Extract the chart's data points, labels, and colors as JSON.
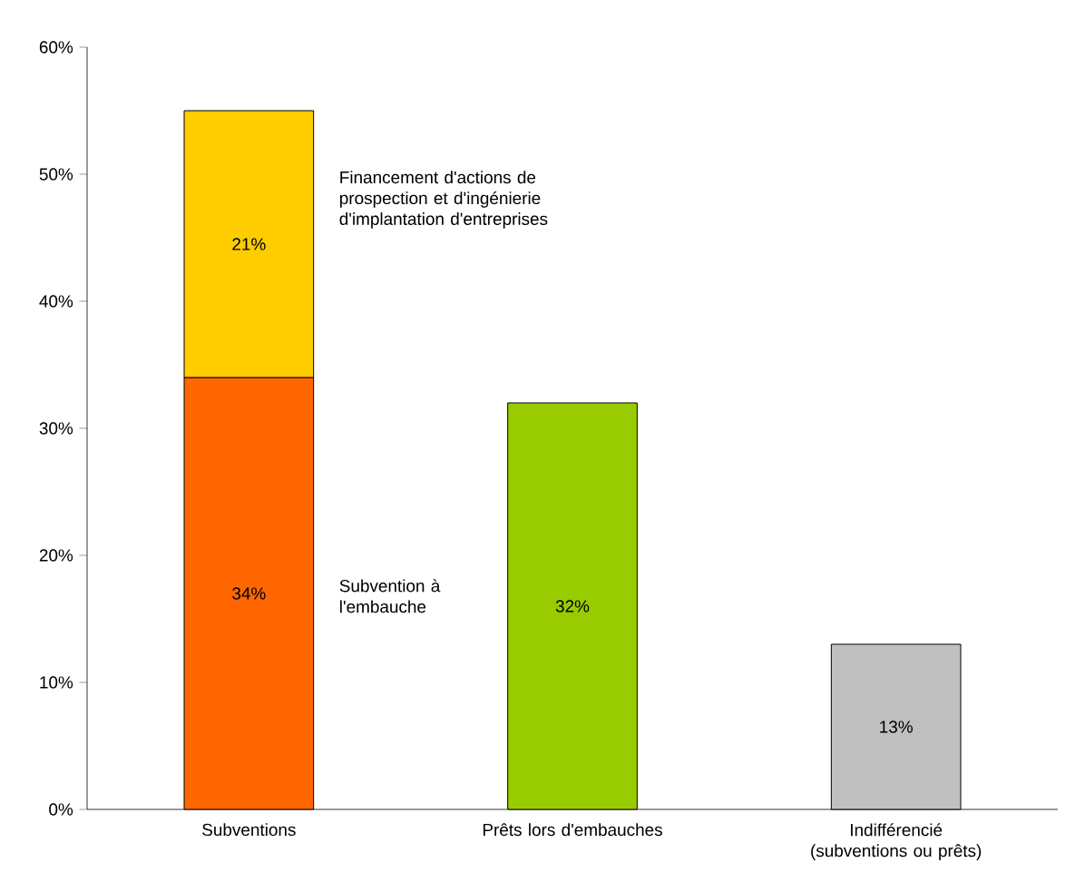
{
  "chart_data": {
    "type": "bar",
    "stacked": true,
    "categories": [
      "Subventions",
      "Prêts lors d'embauches",
      "Indifférencié (subventions ou prêts)"
    ],
    "series": [
      {
        "colors": [
          "#ff6600",
          "#99cc00",
          "#c0c0c0"
        ],
        "values": [
          34,
          32,
          13
        ],
        "value_labels": [
          "34%",
          "32%",
          "13%"
        ]
      },
      {
        "color": "#ffcc00",
        "values": [
          21,
          null,
          null
        ],
        "value_labels": [
          "21%",
          null,
          null
        ]
      }
    ],
    "ylim": [
      0,
      60
    ],
    "yticks": [
      {
        "value": 0,
        "label": "0%"
      },
      {
        "value": 10,
        "label": "10%"
      },
      {
        "value": 20,
        "label": "20%"
      },
      {
        "value": 30,
        "label": "30%"
      },
      {
        "value": 40,
        "label": "40%"
      },
      {
        "value": 50,
        "label": "50%"
      },
      {
        "value": 60,
        "label": "60%"
      }
    ],
    "annotations": [
      "Subvention à l'embauche",
      "Financement d'actions de prospection et d'ingénierie d'implantation d'entreprises"
    ],
    "grid": false
  }
}
